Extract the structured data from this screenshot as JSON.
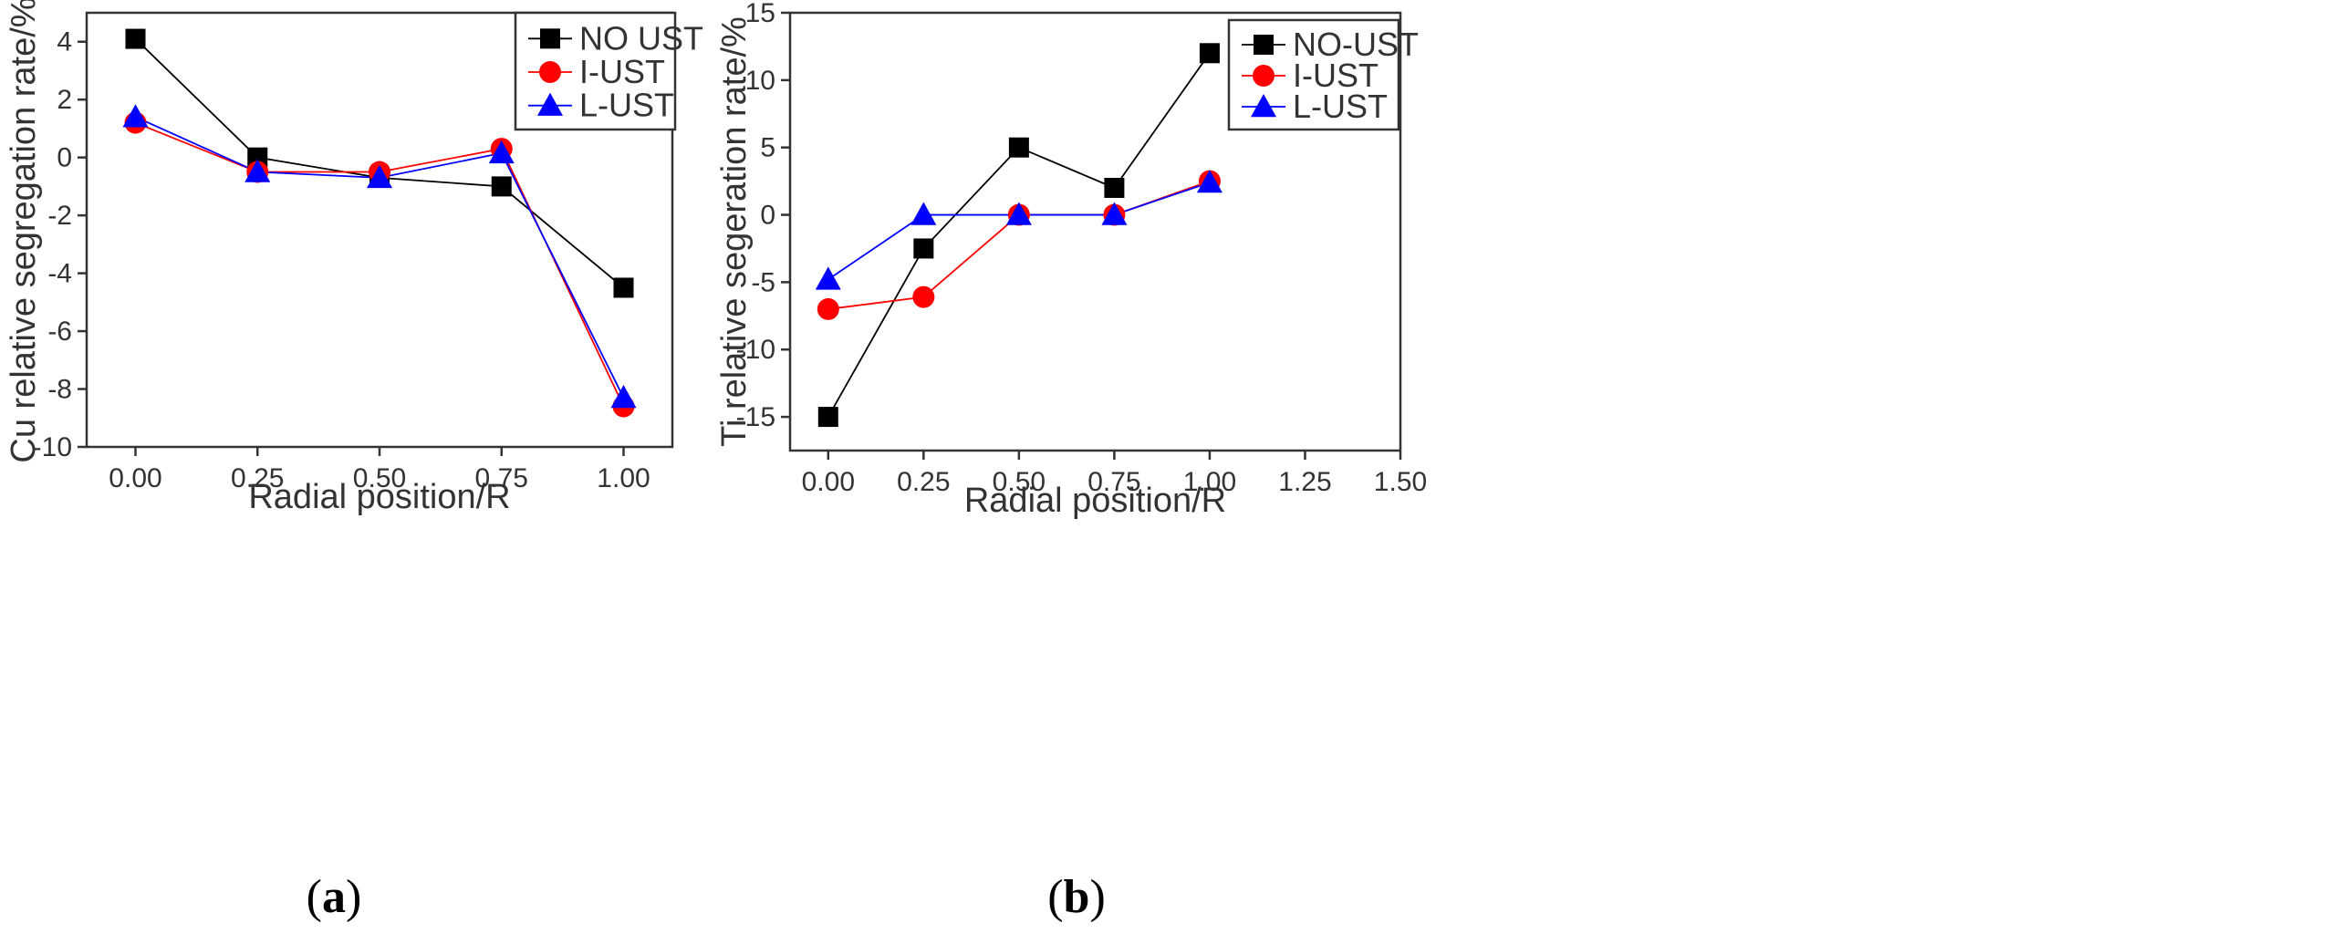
{
  "chart_data": [
    {
      "type": "line",
      "panel_label": "(a)",
      "panel_letter": "a",
      "xlabel": "Radial position/R",
      "ylabel": "Cu relative segregation rate/%",
      "xlim": [
        -0.1,
        1.1
      ],
      "ylim": [
        -10,
        5
      ],
      "xticks": [
        "0.00",
        "0.25",
        "0.50",
        "0.75",
        "1.00"
      ],
      "xtick_values": [
        0,
        0.25,
        0.5,
        0.75,
        1.0
      ],
      "yticks": [
        "-10",
        "-8",
        "-6",
        "-4",
        "-2",
        "0",
        "2",
        "4"
      ],
      "ytick_values": [
        -10,
        -8,
        -6,
        -4,
        -2,
        0,
        2,
        4
      ],
      "legend_position": "top-right",
      "x": [
        0,
        0.25,
        0.5,
        0.75,
        1.0
      ],
      "series": [
        {
          "name": "NO UST",
          "color": "#000000",
          "marker": "square",
          "values": [
            4.1,
            0.0,
            -0.7,
            -1.0,
            -4.5
          ]
        },
        {
          "name": "I-UST",
          "color": "#ff0000",
          "marker": "circle",
          "values": [
            1.2,
            -0.5,
            -0.5,
            0.3,
            -8.6
          ]
        },
        {
          "name": "L-UST",
          "color": "#0000ff",
          "marker": "triangle",
          "values": [
            1.4,
            -0.5,
            -0.7,
            0.15,
            -8.3
          ]
        }
      ]
    },
    {
      "type": "line",
      "panel_label": "(b)",
      "panel_letter": "b",
      "xlabel": "Radial position/R",
      "ylabel": "Ti relative segeration rate/%",
      "xlim": [
        -0.1,
        1.5
      ],
      "ylim": [
        -17.5,
        15
      ],
      "xticks": [
        "0.00",
        "0.25",
        "0.50",
        "0.75",
        "1.00",
        "1.25",
        "1.50"
      ],
      "xtick_values": [
        0,
        0.25,
        0.5,
        0.75,
        1.0,
        1.25,
        1.5
      ],
      "yticks": [
        "-15",
        "-10",
        "-5",
        "0",
        "5",
        "10",
        "15"
      ],
      "ytick_values": [
        -15,
        -10,
        -5,
        0,
        5,
        10,
        15
      ],
      "legend_position": "top-right",
      "x": [
        0,
        0.25,
        0.5,
        0.75,
        1.0
      ],
      "series": [
        {
          "name": "NO-UST",
          "color": "#000000",
          "marker": "square",
          "values": [
            -15,
            -2.5,
            5,
            2,
            12
          ]
        },
        {
          "name": "I-UST",
          "color": "#ff0000",
          "marker": "circle",
          "values": [
            -7,
            -6.1,
            0,
            0,
            2.5
          ]
        },
        {
          "name": "L-UST",
          "color": "#0000ff",
          "marker": "triangle",
          "values": [
            -4.8,
            0,
            0,
            0,
            2.4
          ]
        }
      ]
    }
  ]
}
